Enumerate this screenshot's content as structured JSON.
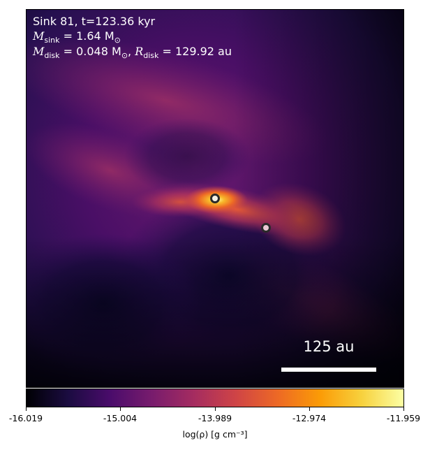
{
  "annotation": {
    "line1": "Sink 81, t=123.36 kyr",
    "sink_mass_label": "M",
    "sink_mass_sub": "sink",
    "sink_mass_value": " = 1.64 M",
    "sun_symbol": "⊙",
    "disk_mass_label": "M",
    "disk_mass_sub": "disk",
    "disk_mass_value": " = 0.048 M",
    "disk_radius_label": "R",
    "disk_radius_sub": "disk",
    "disk_radius_value": " = 129.92 au"
  },
  "scalebar": {
    "label": "125 au"
  },
  "colorbar": {
    "ticks": [
      "-16.019",
      "-15.004",
      "-13.989",
      "-12.974",
      "-11.959"
    ],
    "label": "log(ρ) [g cm⁻³]",
    "colormap": [
      "#000004",
      "#1b0c41",
      "#4a0c6b",
      "#781c6d",
      "#a52c60",
      "#cf4446",
      "#ed6925",
      "#fb9b06",
      "#f7d13d",
      "#fcffa4"
    ]
  },
  "sinks": [
    {
      "name": "primary-sink",
      "fill": "#f4f2e6",
      "stroke": "#2a2a2a"
    },
    {
      "name": "secondary-sink",
      "fill": "#e9c8d4",
      "stroke": "#2a2a2a"
    }
  ]
}
